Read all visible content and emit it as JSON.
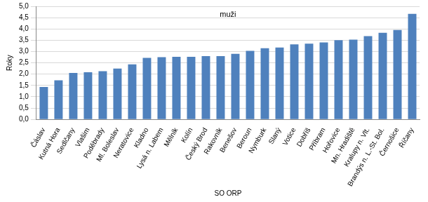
{
  "chart_data": {
    "type": "bar",
    "title": "muži",
    "x_label": "SO ORP",
    "y_label": "Roky",
    "categories": [
      "Čáslav",
      "Kutná Hora",
      "Sedlčany",
      "Vlašim",
      "Poděbrady",
      "Ml. Boleslav",
      "Neratovice",
      "Kladno",
      "Lysá n. Labem",
      "Mělník",
      "Kolín",
      "Český Brod",
      "Rakovník",
      "Benešov",
      "Beroun",
      "Nymburk",
      "Slaný",
      "Votice",
      "Dobříš",
      "Příbram",
      "Hořovice",
      "Mn. Hradiště",
      "Kralupy n. Vlt.",
      "Brandýs n. L.-St. Bol.",
      "Černošice",
      "Říčany"
    ],
    "values": [
      1.43,
      1.73,
      2.05,
      2.08,
      2.13,
      2.25,
      2.43,
      2.72,
      2.75,
      2.77,
      2.77,
      2.8,
      2.8,
      2.9,
      3.03,
      3.15,
      3.18,
      3.32,
      3.35,
      3.4,
      3.5,
      3.53,
      3.68,
      3.83,
      3.95,
      4.67
    ],
    "color": "#4f81bd",
    "ylim": [
      0,
      5
    ],
    "yticks": [
      {
        "value": 0,
        "label": "0,0"
      },
      {
        "value": 0.5,
        "label": "0,5"
      },
      {
        "value": 1,
        "label": "1,0"
      },
      {
        "value": 1.5,
        "label": "1,5"
      },
      {
        "value": 2,
        "label": "2,0"
      },
      {
        "value": 2.5,
        "label": "2,5"
      },
      {
        "value": 3,
        "label": "3,0"
      },
      {
        "value": 3.5,
        "label": "3,5"
      },
      {
        "value": 4,
        "label": "4,0"
      },
      {
        "value": 4.5,
        "label": "4,5"
      },
      {
        "value": 5,
        "label": "5,0"
      }
    ],
    "grid": true
  }
}
